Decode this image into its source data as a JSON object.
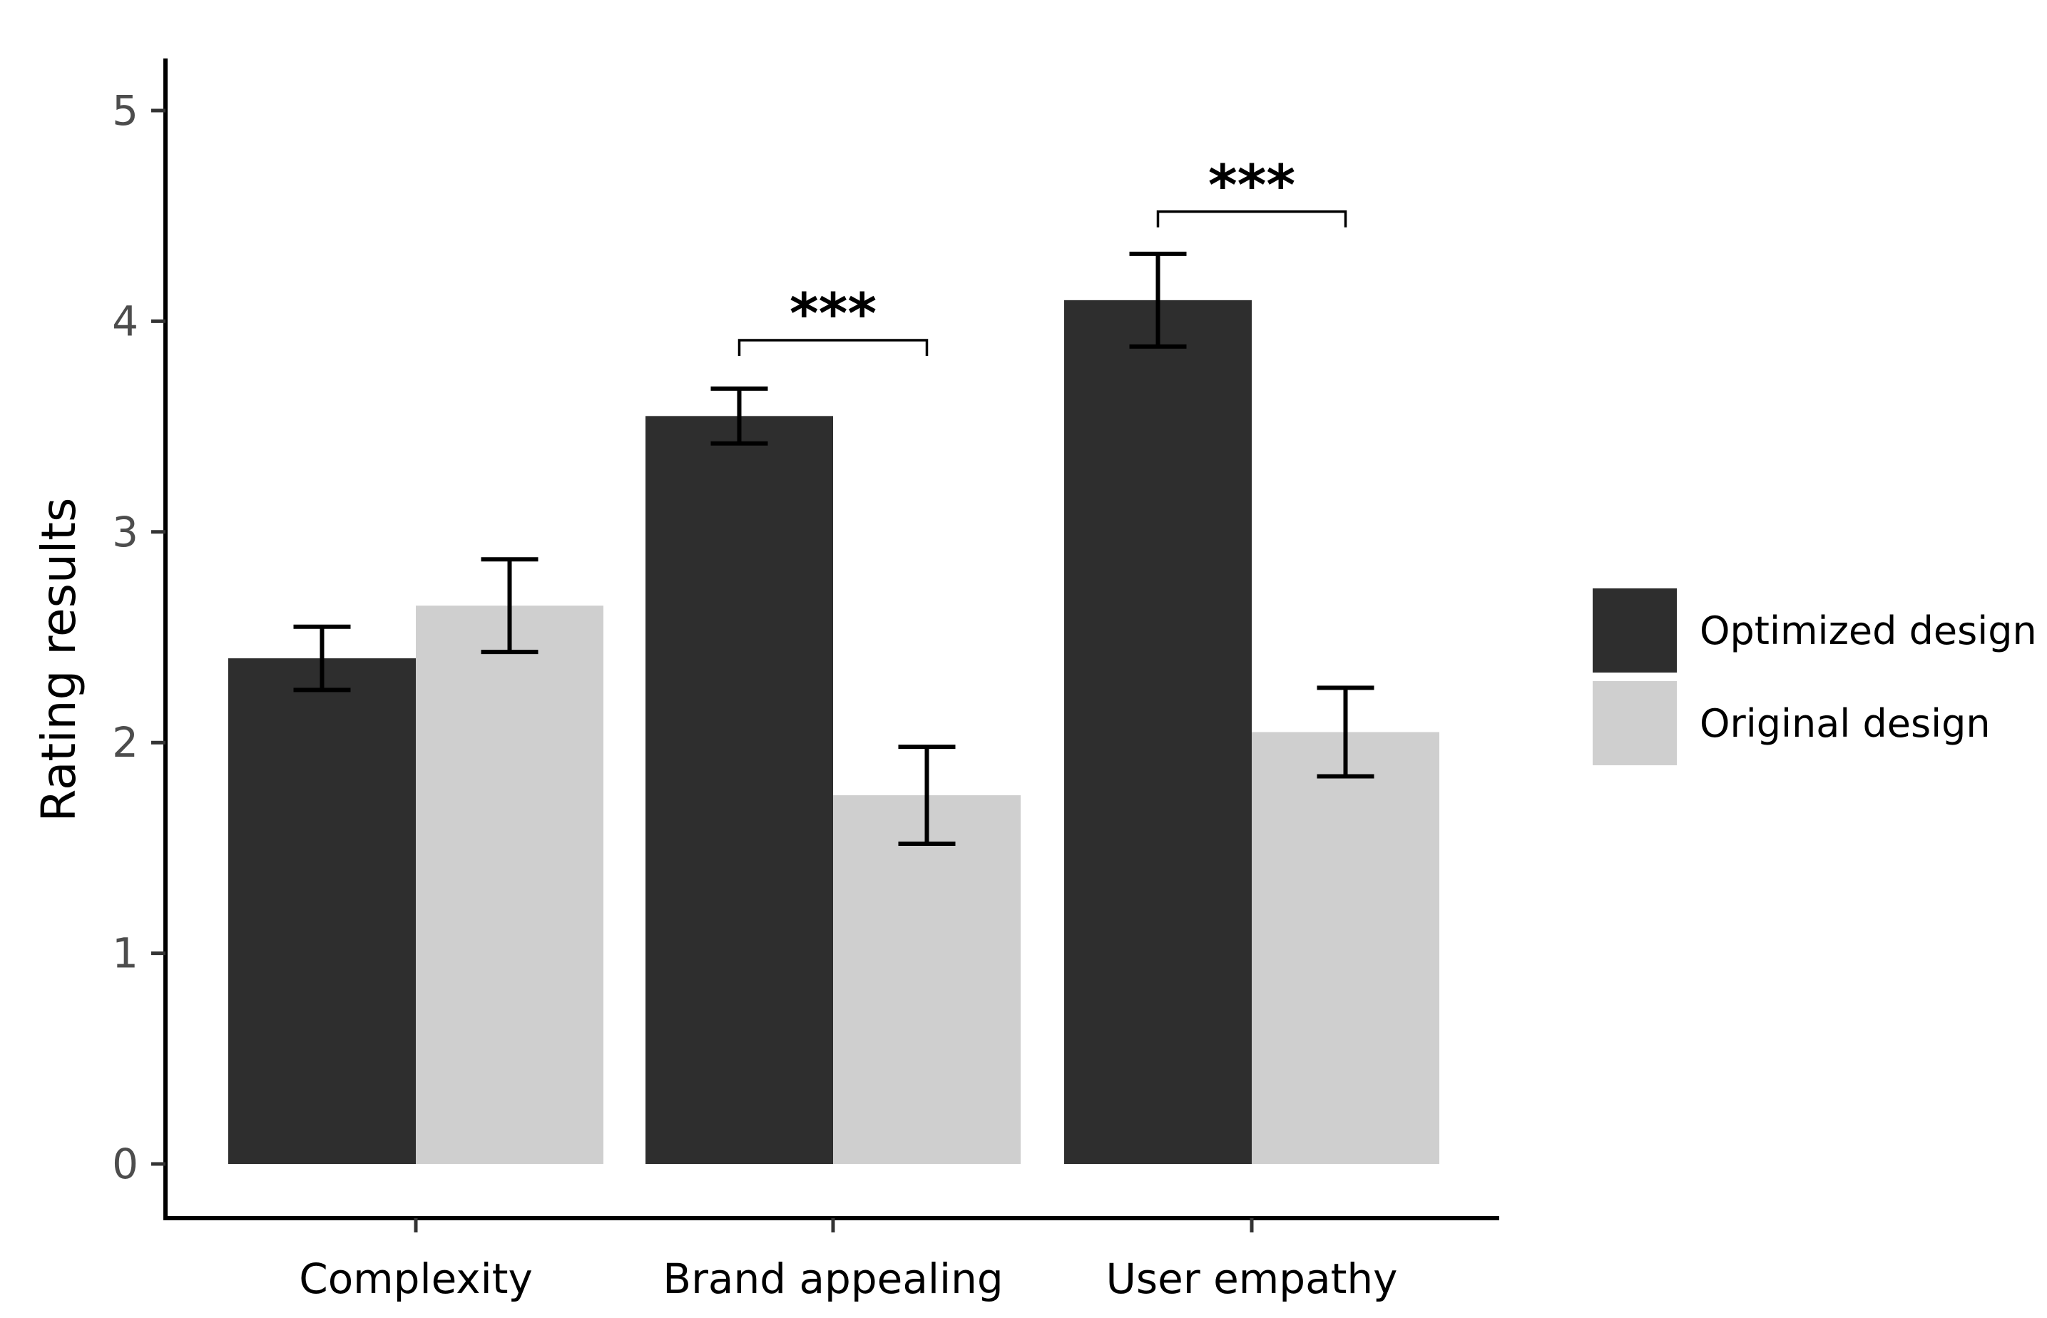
{
  "chart_data": {
    "type": "bar",
    "title": "",
    "xlabel": "",
    "ylabel": "Rating results",
    "ylim": [
      0,
      5
    ],
    "yticks": [
      "0",
      "1",
      "2",
      "3",
      "4",
      "5"
    ],
    "categories": [
      "Complexity",
      "Brand appealing",
      "User empathy"
    ],
    "series": [
      {
        "name": "Optimized design",
        "color": "#2e2e2e",
        "values": [
          2.4,
          3.55,
          4.1
        ],
        "error_low": [
          2.25,
          3.42,
          3.88
        ],
        "error_high": [
          2.55,
          3.68,
          4.32
        ]
      },
      {
        "name": "Original design",
        "color": "#cfcfcf",
        "values": [
          2.65,
          1.75,
          2.05
        ],
        "error_low": [
          2.43,
          1.52,
          1.84
        ],
        "error_high": [
          2.87,
          1.98,
          2.26
        ]
      }
    ],
    "significance": [
      {
        "category_index": 1,
        "label": "***",
        "bracket_y": 3.91
      },
      {
        "category_index": 2,
        "label": "***",
        "bracket_y": 4.52
      }
    ],
    "legend_position": "right",
    "grid": false
  }
}
